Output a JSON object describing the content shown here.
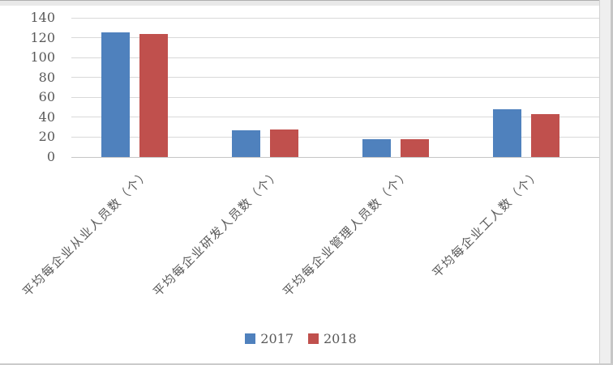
{
  "chart_data": {
    "type": "bar",
    "title": "",
    "categories": [
      "平均每企业从业人员数（个）",
      "平均每企业研发人员数（个）",
      "平均每企业管理人员数（个）",
      "平均每企业工人数（个）"
    ],
    "series": [
      {
        "name": "2017",
        "color": "#4F81BD",
        "values": [
          125,
          27,
          18,
          48
        ]
      },
      {
        "name": "2018",
        "color": "#C0504D",
        "values": [
          124,
          28,
          18,
          43
        ]
      }
    ],
    "ylim": [
      0,
      140
    ],
    "ytick_step": 20,
    "ytick_labels": [
      "0",
      "20",
      "40",
      "60",
      "80",
      "100",
      "120",
      "140"
    ],
    "grid": true,
    "legend_position": "bottom",
    "xlabel": "",
    "ylabel": ""
  },
  "colors": {
    "gridline": "#d9d9d9",
    "axis_text": "#595959",
    "series_2017": "#4F81BD",
    "series_2018": "#C0504D"
  }
}
